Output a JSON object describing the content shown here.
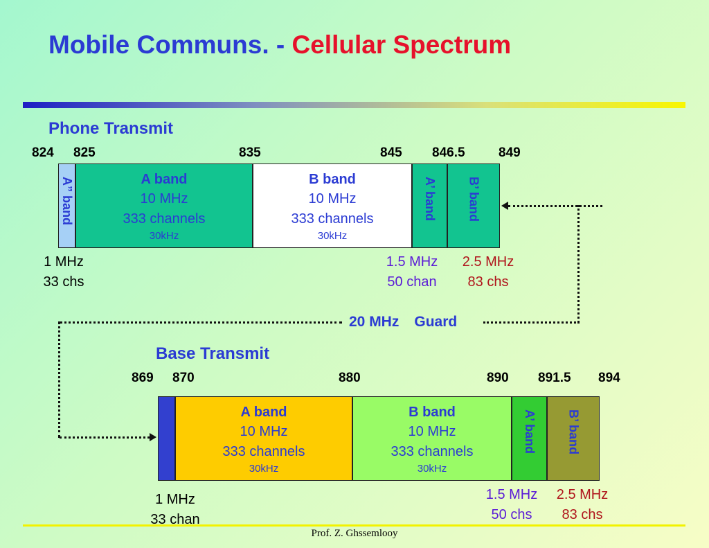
{
  "title": {
    "main": "Mobile Communs. - ",
    "highlight": "Cellular Spectrum"
  },
  "phone": {
    "heading": "Phone Transmit",
    "ticks": [
      "824",
      "825",
      "835",
      "845",
      "846.5",
      "849"
    ],
    "a_dd": "A” band",
    "a": {
      "name": "A band",
      "bw": "10 MHz",
      "ch": "333 channels",
      "sp": "30kHz"
    },
    "b": {
      "name": "B band",
      "bw": "10 MHz",
      "ch": "333 channels",
      "sp": "30kHz"
    },
    "a_prime": "A’ band",
    "b_prime": "B’ band",
    "left_note": [
      "1 MHz",
      "33 chs"
    ],
    "ap_note": [
      "1.5 MHz",
      "50 chan"
    ],
    "bp_note": [
      "2.5 MHz",
      "83 chs"
    ],
    "colors": {
      "a_dd": "#a6d0f6",
      "a": "#12c490",
      "b": "#ffffff",
      "a_prime": "#12c490",
      "b_prime": "#12c490"
    }
  },
  "guard": {
    "value": "20 MHz",
    "label": "Guard"
  },
  "base": {
    "heading": "Base Transmit",
    "ticks": [
      "869",
      "870",
      "880",
      "890",
      "891.5",
      "894"
    ],
    "a": {
      "name": "A band",
      "bw": "10 MHz",
      "ch": "333 channels",
      "sp": "30kHz"
    },
    "b": {
      "name": "B band",
      "bw": "10 MHz",
      "ch": "333 channels",
      "sp": "30kHz"
    },
    "a_prime": "A’ band",
    "b_prime": "B’ band",
    "left_note": [
      "1 MHz",
      "33 chan"
    ],
    "ap_note": [
      "1.5 MHz",
      "50 chs"
    ],
    "bp_note": [
      "2.5 MHz",
      "83 chs"
    ],
    "colors": {
      "a_dd": "#3240cf",
      "a": "#fecc00",
      "b": "#99fb66",
      "a_prime": "#33cc33",
      "b_prime": "#969a33"
    }
  },
  "footer": "Prof. Z. Ghssemlooy"
}
